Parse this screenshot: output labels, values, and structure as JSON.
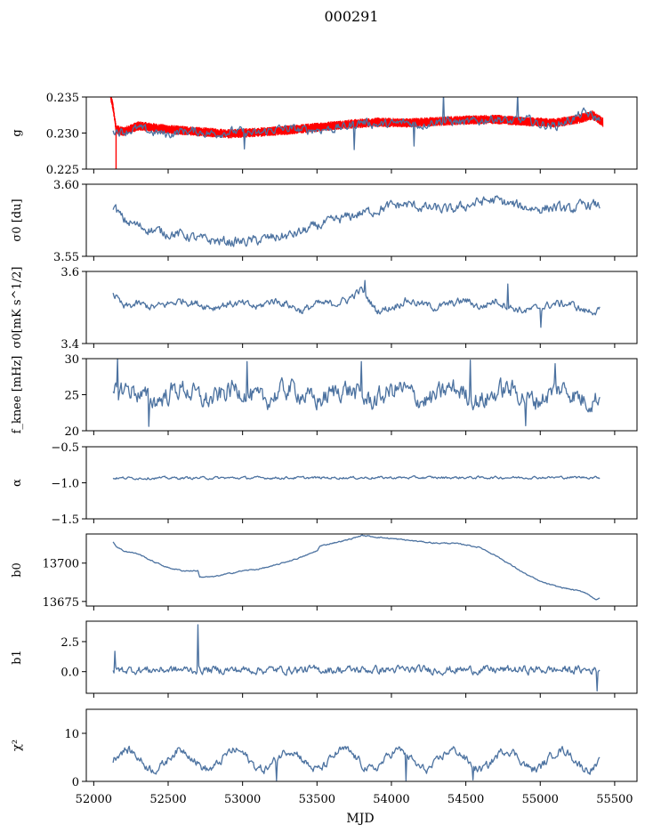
{
  "chart_data": {
    "type": "line",
    "title": "000291",
    "xlabel": "MJD",
    "xlim": [
      51950,
      55650
    ],
    "xticks": [
      52000,
      52500,
      53000,
      53500,
      54000,
      54500,
      55000,
      55500
    ],
    "xtick_labels": [
      "52000",
      "52500",
      "53000",
      "53500",
      "54000",
      "54500",
      "55000",
      "55500"
    ],
    "line_color": "#4c72a0",
    "overlay_color": "#ff0000",
    "panels": [
      {
        "id": "g",
        "ylabel": "g",
        "ylim": [
          0.225,
          0.235
        ],
        "yticks": [
          0.225,
          0.23,
          0.235
        ],
        "ytick_labels": [
          "0.225",
          "0.230",
          "0.235"
        ],
        "overlay_series": {
          "name": "model",
          "x": [
            52110,
            52130,
            52150,
            52200,
            52300,
            52500,
            52700,
            52900,
            53100,
            53300,
            53500,
            53700,
            53900,
            54100,
            54300,
            54500,
            54700,
            54900,
            55100,
            55250,
            55350,
            55420
          ],
          "y": [
            0.2355,
            0.2335,
            0.2305,
            0.2302,
            0.231,
            0.2305,
            0.2302,
            0.2299,
            0.2301,
            0.2304,
            0.2308,
            0.2312,
            0.2315,
            0.2314,
            0.2316,
            0.2318,
            0.2319,
            0.2316,
            0.2314,
            0.2319,
            0.2325,
            0.2315
          ],
          "band_halfwidth": 0.0006,
          "spike": {
            "x": 52150,
            "y": [
              0.2305,
              0.2248
            ]
          }
        },
        "series": {
          "name": "g",
          "x": [
            52130,
            52200,
            52300,
            52400,
            52500,
            52600,
            52700,
            52800,
            52900,
            53000,
            53100,
            53200,
            53300,
            53400,
            53500,
            53600,
            53700,
            53800,
            53900,
            54000,
            54100,
            54200,
            54300,
            54400,
            54500,
            54600,
            54700,
            54800,
            54900,
            55000,
            55100,
            55200,
            55300,
            55400
          ],
          "y": [
            0.2305,
            0.2302,
            0.2306,
            0.2301,
            0.2298,
            0.2303,
            0.2302,
            0.2299,
            0.2302,
            0.2302,
            0.2298,
            0.2305,
            0.2306,
            0.2304,
            0.2305,
            0.2306,
            0.2309,
            0.2316,
            0.2312,
            0.2312,
            0.2315,
            0.2311,
            0.2317,
            0.2316,
            0.2314,
            0.2317,
            0.2321,
            0.2315,
            0.2319,
            0.2312,
            0.231,
            0.2318,
            0.2328,
            0.2318
          ],
          "noise": 0.0007,
          "spikes": [
            {
              "x": 53010,
              "y": 0.2278
            },
            {
              "x": 53750,
              "y": 0.2277
            },
            {
              "x": 54350,
              "y": 0.2355
            },
            {
              "x": 54850,
              "y": 0.2355
            },
            {
              "x": 54150,
              "y": 0.2282
            }
          ]
        }
      },
      {
        "id": "sigma0-du",
        "ylabel": "σ0 [du]",
        "ylim": [
          3.55,
          3.6
        ],
        "yticks": [
          3.55,
          3.6
        ],
        "ytick_labels": [
          "3.55",
          "3.60"
        ],
        "series": {
          "name": "sigma0_du",
          "x": [
            52130,
            52200,
            52300,
            52400,
            52500,
            52600,
            52700,
            52800,
            52900,
            53000,
            53100,
            53200,
            53300,
            53400,
            53500,
            53600,
            53700,
            53800,
            53900,
            54000,
            54100,
            54200,
            54300,
            54400,
            54500,
            54600,
            54700,
            54800,
            54900,
            55000,
            55100,
            55200,
            55300,
            55400
          ],
          "y": [
            3.585,
            3.575,
            3.571,
            3.568,
            3.566,
            3.565,
            3.562,
            3.561,
            3.56,
            3.56,
            3.561,
            3.563,
            3.564,
            3.567,
            3.571,
            3.574,
            3.577,
            3.58,
            3.582,
            3.585,
            3.586,
            3.584,
            3.583,
            3.582,
            3.585,
            3.588,
            3.589,
            3.586,
            3.584,
            3.583,
            3.584,
            3.582,
            3.586,
            3.585
          ],
          "noise": 0.004
        }
      },
      {
        "id": "sigma0-mk",
        "ylabel": "σ0[mK s^1/2]",
        "ylim": [
          3.4,
          3.6
        ],
        "yticks": [
          3.4,
          3.6
        ],
        "ytick_labels": [
          "3.4",
          "3.6"
        ],
        "series": {
          "name": "sigma0_mK",
          "x": [
            52130,
            52200,
            52300,
            52400,
            52500,
            52600,
            52700,
            52800,
            52900,
            53000,
            53100,
            53200,
            53300,
            53400,
            53500,
            53600,
            53700,
            53800,
            53900,
            54000,
            54100,
            54200,
            54300,
            54400,
            54500,
            54600,
            54700,
            54800,
            54900,
            55000,
            55100,
            55200,
            55300,
            55400
          ],
          "y": [
            3.54,
            3.5,
            3.51,
            3.5,
            3.51,
            3.52,
            3.51,
            3.5,
            3.51,
            3.51,
            3.5,
            3.52,
            3.51,
            3.49,
            3.51,
            3.51,
            3.52,
            3.55,
            3.49,
            3.5,
            3.52,
            3.51,
            3.5,
            3.51,
            3.52,
            3.5,
            3.52,
            3.5,
            3.49,
            3.5,
            3.51,
            3.51,
            3.49,
            3.49
          ],
          "noise": 0.012,
          "spikes": [
            {
              "x": 53820,
              "y": 3.575
            },
            {
              "x": 54780,
              "y": 3.565
            },
            {
              "x": 55005,
              "y": 3.445
            }
          ]
        }
      },
      {
        "id": "fknee",
        "ylabel": "f_knee [mHz]",
        "ylim": [
          20,
          30
        ],
        "yticks": [
          20,
          25,
          30
        ],
        "ytick_labels": [
          "20",
          "25",
          "30"
        ],
        "series": {
          "name": "fknee",
          "x": [
            52130,
            55400
          ],
          "y": [
            25,
            25
          ],
          "noise": 1.6,
          "wave": {
            "amplitude": 0.8,
            "period": 365
          },
          "spikes": [
            {
              "x": 52160,
              "y": 30
            },
            {
              "x": 52370,
              "y": 20.6
            },
            {
              "x": 53030,
              "y": 29.6
            },
            {
              "x": 53800,
              "y": 29.6
            },
            {
              "x": 54530,
              "y": 29.8
            },
            {
              "x": 54900,
              "y": 20.7
            },
            {
              "x": 55100,
              "y": 29.3
            }
          ]
        }
      },
      {
        "id": "alpha",
        "ylabel": "α",
        "ylim": [
          -1.5,
          -0.5
        ],
        "yticks": [
          -1.5,
          -1.0,
          -0.5
        ],
        "ytick_labels": [
          "−1.5",
          "−1.0",
          "−0.5"
        ],
        "series": {
          "name": "alpha",
          "x": [
            52130,
            55400
          ],
          "y": [
            -0.935,
            -0.925
          ],
          "noise": 0.02
        }
      },
      {
        "id": "b0",
        "ylabel": "b0",
        "ylim": [
          13672,
          13719
        ],
        "yticks": [
          13675,
          13700
        ],
        "ytick_labels": [
          "13675",
          "13700"
        ],
        "series": {
          "name": "b0",
          "x": [
            52130,
            52150,
            52200,
            52300,
            52400,
            52500,
            52600,
            52700,
            52710,
            52800,
            52900,
            53000,
            53100,
            53200,
            53300,
            53400,
            53500,
            53520,
            53600,
            53700,
            53800,
            53900,
            54000,
            54100,
            54200,
            54300,
            54400,
            54500,
            54600,
            54700,
            54800,
            54900,
            55000,
            55100,
            55200,
            55300,
            55380,
            55400
          ],
          "y": [
            13714,
            13711,
            13708,
            13706,
            13701,
            13697,
            13695,
            13695,
            13691,
            13691,
            13693,
            13695,
            13696,
            13698,
            13701,
            13704,
            13708,
            13711,
            13713,
            13715,
            13718,
            13717,
            13716,
            13715,
            13714,
            13713,
            13713,
            13712,
            13710,
            13705,
            13699,
            13693,
            13688,
            13685,
            13683,
            13681,
            13676,
            13677
          ],
          "noise": 0.45
        }
      },
      {
        "id": "b1",
        "ylabel": "b1",
        "ylim": [
          -1.8,
          4.2
        ],
        "yticks": [
          0.0,
          2.5
        ],
        "ytick_labels": [
          "0.0",
          "2.5"
        ],
        "series": {
          "name": "b1",
          "x": [
            52130,
            55400
          ],
          "y": [
            0.15,
            0.15
          ],
          "noise": 0.38,
          "spikes": [
            {
              "x": 52700,
              "y": 3.9
            },
            {
              "x": 55380,
              "y": -1.6
            },
            {
              "x": 52140,
              "y": 1.7
            }
          ]
        }
      },
      {
        "id": "chi2",
        "ylabel": "χ²",
        "ylim": [
          0,
          15
        ],
        "yticks": [
          0,
          10
        ],
        "ytick_labels": [
          "0",
          "10"
        ],
        "series": {
          "name": "chi2",
          "x": [
            52130,
            55400
          ],
          "y": [
            4.5,
            4.5
          ],
          "noise": 1.0,
          "wave": {
            "amplitude": 2.0,
            "period": 365
          },
          "spikes": [
            {
              "x": 53230,
              "y": 0.2
            },
            {
              "x": 54100,
              "y": 0.2
            },
            {
              "x": 54550,
              "y": 0.3
            }
          ]
        }
      }
    ]
  }
}
